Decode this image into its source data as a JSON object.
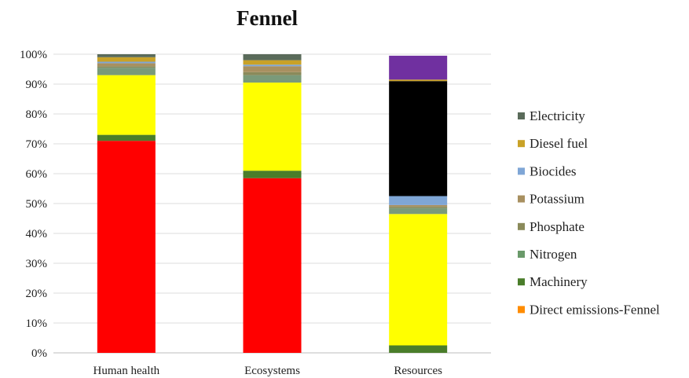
{
  "chart_data": {
    "type": "bar",
    "stacked": true,
    "percent_stacked": true,
    "title": "Fennel",
    "xlabel": "",
    "ylabel": "",
    "ylim": [
      0,
      100
    ],
    "yticks": [
      "0%",
      "10%",
      "20%",
      "30%",
      "40%",
      "50%",
      "60%",
      "70%",
      "80%",
      "90%",
      "100%"
    ],
    "grid": true,
    "legend_position": "right",
    "categories": [
      "Human health",
      "Ecosystems",
      "Resources"
    ],
    "series": [
      {
        "name": "Direct emissions-Fennel",
        "color": "#ff0000",
        "values": [
          71,
          58.5,
          0
        ]
      },
      {
        "name": "Machinery",
        "color": "#4a7d2a",
        "values": [
          2,
          2.5,
          2.5
        ]
      },
      {
        "name": "",
        "color": "#ffff00",
        "values": [
          20,
          29.5,
          44
        ]
      },
      {
        "name": "Nitrogen",
        "color": "#7a9a7a",
        "values": [
          2.5,
          2.5,
          2
        ]
      },
      {
        "name": "Phosphate",
        "color": "#8a8a5a",
        "values": [
          0.5,
          1,
          0.5
        ]
      },
      {
        "name": "Potassium",
        "color": "#a89060",
        "values": [
          1,
          2,
          0.5
        ]
      },
      {
        "name": "Biocides",
        "color": "#7fa6d6",
        "values": [
          0.5,
          0.5,
          3
        ]
      },
      {
        "name": "",
        "color": "#000000",
        "values": [
          0,
          0,
          38.5
        ]
      },
      {
        "name": "Diesel fuel",
        "color": "#c9a227",
        "values": [
          1.5,
          1.5,
          0.5
        ]
      },
      {
        "name": "",
        "color": "#7030a0",
        "values": [
          0,
          0,
          8
        ]
      },
      {
        "name": "Electricity",
        "color": "#5a6b5a",
        "values": [
          1,
          2,
          0
        ]
      }
    ],
    "legend": [
      {
        "label": "Electricity",
        "color": "#5a6b5a"
      },
      {
        "label": "Diesel fuel",
        "color": "#c9a227"
      },
      {
        "label": "Biocides",
        "color": "#7fa6d6"
      },
      {
        "label": "Potassium",
        "color": "#a89060"
      },
      {
        "label": "Phosphate",
        "color": "#8a8a5a"
      },
      {
        "label": "Nitrogen",
        "color": "#6a9a6a"
      },
      {
        "label": "Machinery",
        "color": "#4a7d2a"
      },
      {
        "label": "Direct emissions-Fennel",
        "color": "#ff8c00"
      }
    ]
  }
}
